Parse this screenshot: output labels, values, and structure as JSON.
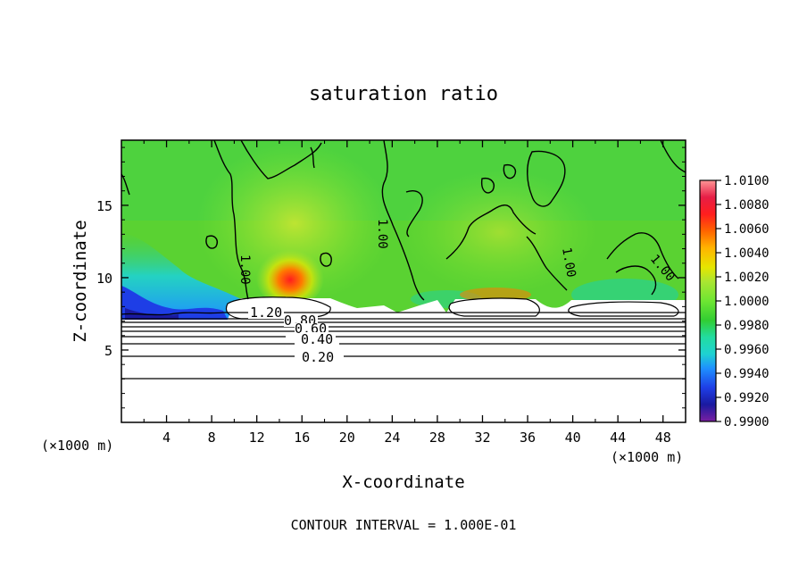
{
  "chart_data": {
    "type": "heatmap",
    "title": "saturation ratio",
    "xlabel": "X-coordinate",
    "ylabel": "Z-coordinate",
    "x_unit": "(×1000 m)",
    "y_unit": "(×1000 m)",
    "xlim": [
      0,
      50
    ],
    "ylim": [
      0,
      19.5
    ],
    "x_ticks": [
      4,
      8,
      12,
      16,
      20,
      24,
      28,
      32,
      36,
      40,
      44,
      48
    ],
    "y_ticks": [
      5,
      10,
      15
    ],
    "colorbar": {
      "ticks": [
        "1.0100",
        "1.0080",
        "1.0060",
        "1.0040",
        "1.0020",
        "1.0000",
        "0.9980",
        "0.9960",
        "0.9940",
        "0.9920",
        "0.9900"
      ],
      "range": [
        0.99,
        1.01
      ],
      "colors": [
        "#7a1fa2",
        "#1a1aa0",
        "#1e3ee6",
        "#1e90ff",
        "#1ed2d2",
        "#22dca0",
        "#32cd32",
        "#6ee632",
        "#aae632",
        "#e6e600",
        "#ffb400",
        "#ff6400",
        "#ff1e1e",
        "#e61e46",
        "#ff9696"
      ]
    },
    "contour_labels": [
      "1.20",
      "0.80",
      "0.60",
      "0.40",
      "0.20",
      "1.00",
      "1.00",
      "1.00",
      "1.00"
    ],
    "footer": "CONTOUR INTERVAL = 1.000E-01"
  }
}
